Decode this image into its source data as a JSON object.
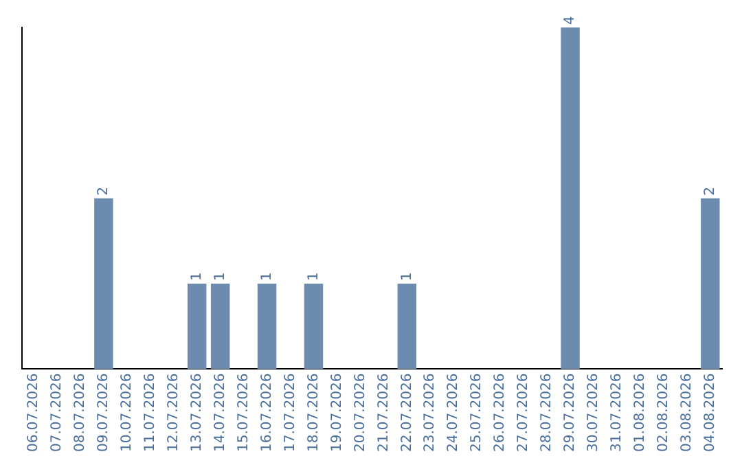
{
  "chart_data": {
    "type": "bar",
    "categories": [
      "06.07.2026",
      "07.07.2026",
      "08.07.2026",
      "09.07.2026",
      "10.07.2026",
      "11.07.2026",
      "12.07.2026",
      "13.07.2026",
      "14.07.2026",
      "15.07.2026",
      "16.07.2026",
      "17.07.2026",
      "18.07.2026",
      "19.07.2026",
      "20.07.2026",
      "21.07.2026",
      "22.07.2026",
      "23.07.2026",
      "24.07.2026",
      "25.07.2026",
      "26.07.2026",
      "27.07.2026",
      "28.07.2026",
      "29.07.2026",
      "30.07.2026",
      "31.07.2026",
      "01.08.2026",
      "02.08.2026",
      "03.08.2026",
      "04.08.2026"
    ],
    "values": [
      0,
      0,
      0,
      2,
      0,
      0,
      0,
      1,
      1,
      0,
      1,
      0,
      1,
      0,
      0,
      0,
      1,
      0,
      0,
      0,
      0,
      0,
      0,
      4,
      0,
      0,
      0,
      0,
      0,
      2
    ],
    "value_labels": [
      null,
      null,
      null,
      "2",
      null,
      null,
      null,
      "1",
      "1",
      null,
      "1",
      null,
      "1",
      null,
      null,
      null,
      "1",
      null,
      null,
      null,
      null,
      null,
      null,
      "4",
      null,
      null,
      null,
      null,
      null,
      "2"
    ],
    "color": "#6b8cae",
    "grid": false,
    "legend": false
  }
}
